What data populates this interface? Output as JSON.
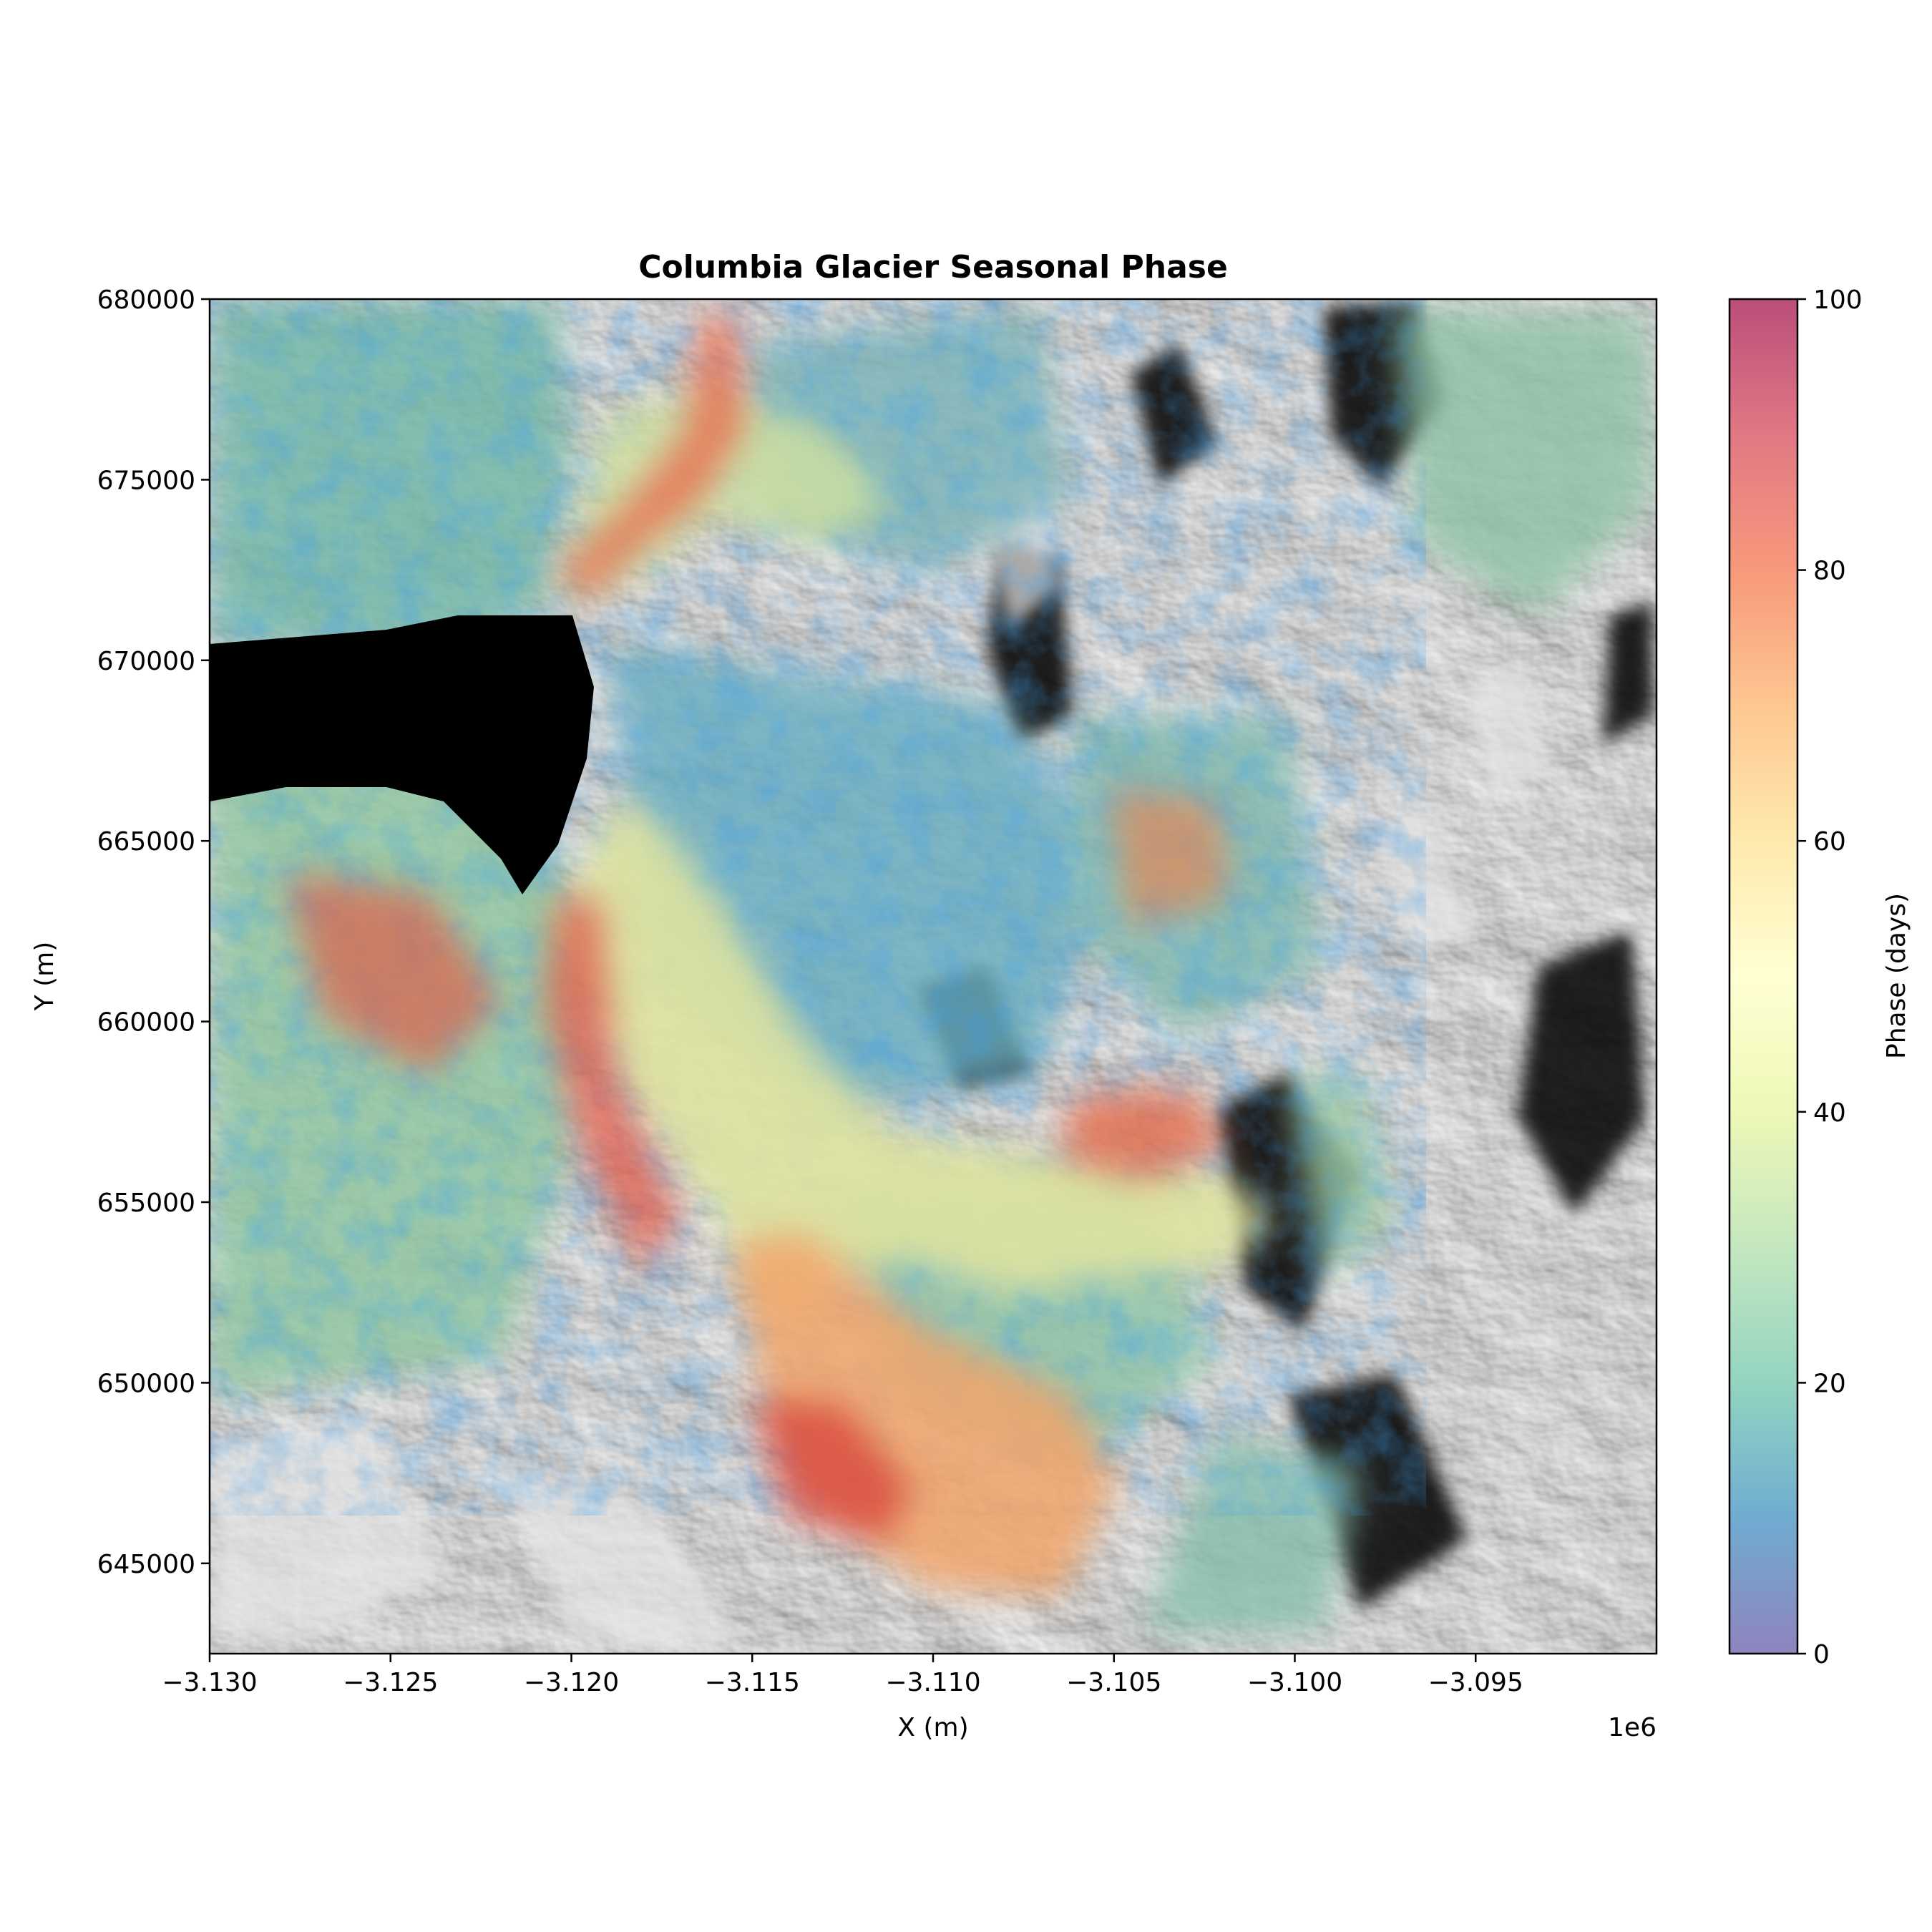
{
  "figure": {
    "title": "Columbia Glacier Seasonal Phase",
    "xlabel": "X (m)",
    "ylabel": "Y (m)",
    "x_offset_label": "1e6",
    "colorbar_label": "Phase (days)"
  },
  "chart_data": {
    "type": "heatmap",
    "title": "Columbia Glacier Seasonal Phase",
    "xlabel": "X (m)",
    "ylabel": "Y (m)",
    "xlim": [
      -3130000,
      -3090000
    ],
    "ylim": [
      642500,
      680000
    ],
    "x_ticks": [
      -3130000,
      -3125000,
      -3120000,
      -3115000,
      -3110000,
      -3105000,
      -3100000,
      -3095000
    ],
    "x_tick_labels": [
      "−3.130",
      "−3.125",
      "−3.120",
      "−3.115",
      "−3.110",
      "−3.105",
      "−3.100",
      "−3.095"
    ],
    "y_ticks": [
      645000,
      650000,
      655000,
      660000,
      665000,
      670000,
      675000,
      680000
    ],
    "y_tick_labels": [
      "645000",
      "650000",
      "655000",
      "660000",
      "665000",
      "670000",
      "675000",
      "680000"
    ],
    "colorbar": {
      "label": "Phase (days)",
      "range": [
        0,
        100
      ],
      "ticks": [
        0,
        20,
        40,
        60,
        80,
        100
      ],
      "tick_labels": [
        "0",
        "20",
        "40",
        "60",
        "80",
        "100"
      ],
      "colormap": "Spectral_r",
      "colors": [
        "#5e4fa2",
        "#3288bd",
        "#66c2a5",
        "#abdda4",
        "#e6f598",
        "#ffffbf",
        "#fee08b",
        "#fdae61",
        "#f46d43",
        "#d53e4f",
        "#9e0142"
      ]
    },
    "background": "grayscale hillshade",
    "grid": false
  }
}
